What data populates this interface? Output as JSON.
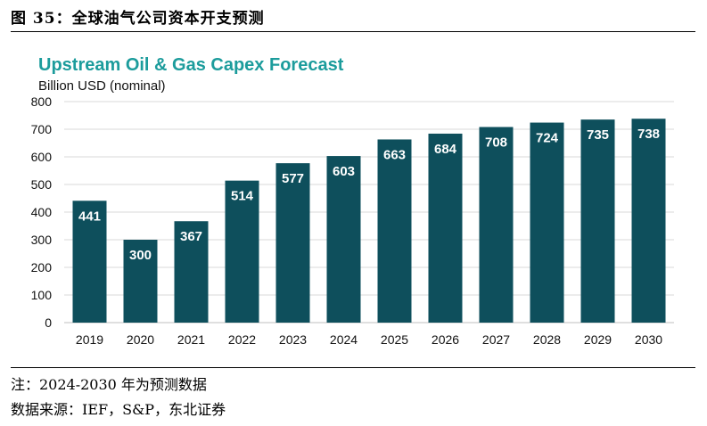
{
  "figure": {
    "caption": "图 35：全球油气公司资本开支预测",
    "note": "注：2024-2030 年为预测数据",
    "source": "数据来源：IEF，S&P，东北证券"
  },
  "colors": {
    "bar": "#0e4f5c",
    "title": "#1c9c9c",
    "grid": "#d9d9d9"
  },
  "chart_data": {
    "type": "bar",
    "title": "Upstream Oil & Gas Capex Forecast",
    "ylabel": "Billion USD (nominal)",
    "xlabel": "",
    "categories": [
      "2019",
      "2020",
      "2021",
      "2022",
      "2023",
      "2024",
      "2025",
      "2026",
      "2027",
      "2028",
      "2029",
      "2030"
    ],
    "values": [
      441,
      300,
      367,
      514,
      577,
      603,
      663,
      684,
      708,
      724,
      735,
      738
    ],
    "ylim": [
      0,
      800
    ],
    "yticks": [
      0,
      100,
      200,
      300,
      400,
      500,
      600,
      700,
      800
    ],
    "grid": true,
    "data_labels": true
  }
}
